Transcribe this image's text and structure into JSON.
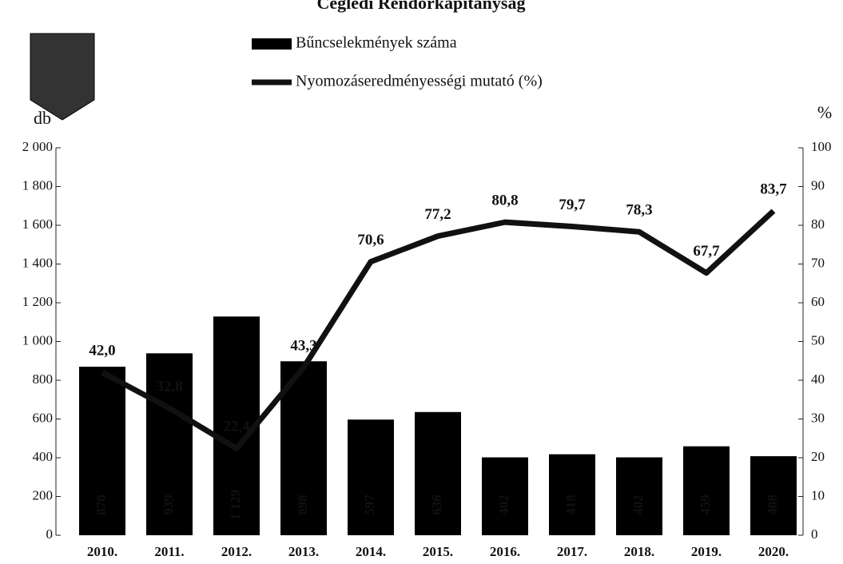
{
  "chart_data": {
    "type": "bar-line",
    "title": "Ceglédi Rendőrkapitányság",
    "ylabel": "db",
    "y2label": "%",
    "categories": [
      "2010.",
      "2011.",
      "2012.",
      "2013.",
      "2014.",
      "2015.",
      "2016.",
      "2017.",
      "2018.",
      "2019.",
      "2020."
    ],
    "series": [
      {
        "name": "Bűncselekmények száma",
        "type": "bar",
        "color": "#000000",
        "values": [
          870,
          939,
          1129,
          898,
          597,
          636,
          402,
          418,
          402,
          459,
          408
        ],
        "value_labels": [
          "870",
          "939",
          "1 129",
          "898",
          "597",
          "636",
          "402",
          "418",
          "402",
          "459",
          "408"
        ]
      },
      {
        "name": "Nyomozáseredményességi mutató (%)",
        "type": "line",
        "axis": "y2",
        "color": "#111111",
        "values": [
          42.0,
          32.8,
          22.4,
          43.3,
          70.6,
          77.2,
          80.8,
          79.7,
          78.3,
          67.7,
          83.7
        ],
        "value_labels": [
          "42,0",
          "32,8",
          "22,4",
          "43,3",
          "70,6",
          "77,2",
          "80,8",
          "79,7",
          "78,3",
          "67,7",
          "83,7"
        ]
      }
    ],
    "ylim": [
      0,
      2000
    ],
    "yticks": [
      0,
      200,
      400,
      600,
      800,
      {
        "value": 1000,
        "label": "1 000"
      },
      {
        "value": 1200,
        "label": "1 200"
      },
      {
        "value": 1400,
        "label": "1 400"
      },
      {
        "value": 1600,
        "label": "1 600"
      },
      {
        "value": 1800,
        "label": "1 800"
      },
      {
        "value": 2000,
        "label": "2 000"
      }
    ],
    "y2lim": [
      0,
      100
    ],
    "y2ticks": [
      0,
      10,
      20,
      30,
      40,
      50,
      60,
      70,
      80,
      90,
      100
    ],
    "grid": false
  }
}
